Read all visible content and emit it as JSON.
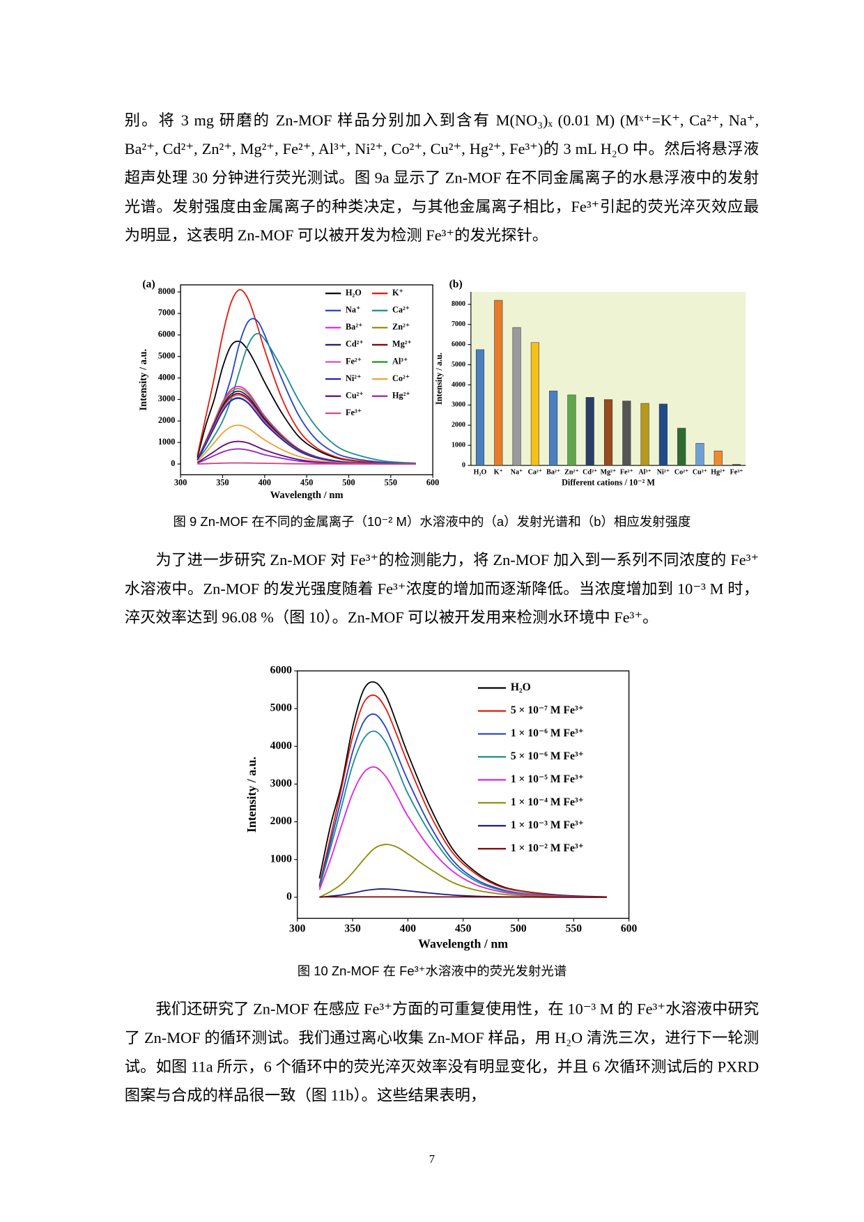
{
  "text": {
    "p1": "别。将 3 mg 研磨的 Zn-MOF 样品分别加入到含有 M(NO₃)ₓ (0.01 M) (Mˣ⁺=K⁺, Ca²⁺, Na⁺, Ba²⁺, Cd²⁺, Zn²⁺, Mg²⁺, Fe²⁺, Al³⁺, Ni²⁺, Co²⁺, Cu²⁺, Hg²⁺, Fe³⁺)的 3 mL H₂O 中。然后将悬浮液超声处理 30 分钟进行荧光测试。图 9a 显示了 Zn-MOF 在不同金属离子的水悬浮液中的发射光谱。发射强度由金属离子的种类决定，与其他金属离子相比，Fe³⁺引起的荧光淬灭效应最为明显，这表明 Zn-MOF 可以被开发为检测 Fe³⁺的发光探针。",
    "fig9_caption": "图 9 Zn-MOF 在不同的金属离子（10⁻² M）水溶液中的（a）发射光谱和（b）相应发射强度",
    "p2": "为了进一步研究 Zn-MOF 对 Fe³⁺的检测能力，将 Zn-MOF 加入到一系列不同浓度的 Fe³⁺水溶液中。Zn-MOF 的发光强度随着 Fe³⁺浓度的增加而逐渐降低。当浓度增加到 10⁻³ M 时，淬灭效率达到 96.08 %（图 10）。Zn-MOF 可以被开发用来检测水环境中 Fe³⁺。",
    "fig10_caption": "图 10 Zn-MOF 在 Fe³⁺水溶液中的荧光发射光谱",
    "p3": "我们还研究了 Zn-MOF 在感应 Fe³⁺方面的可重复使用性，在 10⁻³ M 的 Fe³⁺水溶液中研究了 Zn-MOF 的循环测试。我们通过离心收集 Zn-MOF 样品，用 H₂O 清洗三次，进行下一轮测试。如图 11a 所示，6 个循环中的荧光淬灭效率没有明显变化，并且 6 次循环测试后的 PXRD 图案与合成的样品很一致（图 11b）。这些结果表明，",
    "page_number": "7"
  },
  "chart_data": [
    {
      "type": "line",
      "panel_label": "(a)",
      "x_label": "Wavelength / nm",
      "y_label": "Intensity / a.u.",
      "xlim": [
        300,
        600
      ],
      "xticks": [
        300,
        350,
        400,
        450,
        500,
        550,
        600
      ],
      "ylim": [
        -500,
        8330
      ],
      "yticks": [
        0,
        1000,
        2000,
        3000,
        4000,
        5000,
        6000,
        7000,
        8000
      ],
      "legend": "upper right",
      "x": [
        320,
        330,
        340,
        350,
        360,
        370,
        380,
        390,
        400,
        420,
        440,
        460,
        480,
        500,
        540,
        580
      ],
      "series": [
        {
          "name": "H₂O",
          "color": "#000000",
          "values": [
            300,
            1800,
            3000,
            4500,
            5500,
            5700,
            5300,
            4600,
            3800,
            2400,
            1300,
            700,
            350,
            180,
            50,
            10
          ]
        },
        {
          "name": "K⁺",
          "color": "#e3170a",
          "values": [
            400,
            2200,
            4000,
            6000,
            7500,
            8100,
            7700,
            6600,
            5300,
            3100,
            1600,
            800,
            400,
            200,
            50,
            10
          ]
        },
        {
          "name": "Na⁺",
          "color": "#1f3fd0",
          "values": [
            200,
            1000,
            1800,
            2800,
            4000,
            5600,
            6600,
            6700,
            6000,
            4000,
            2300,
            1200,
            600,
            300,
            80,
            20
          ]
        },
        {
          "name": "Ca²⁺",
          "color": "#1a8a8a",
          "values": [
            200,
            700,
            1300,
            2000,
            3000,
            4300,
            5500,
            6050,
            5800,
            4500,
            3000,
            1800,
            1000,
            550,
            150,
            40
          ]
        },
        {
          "name": "Ba²⁺",
          "color": "#e020e0",
          "values": [
            220,
            1080,
            1980,
            2880,
            3460,
            3600,
            3350,
            2810,
            2230,
            1370,
            720,
            360,
            180,
            90,
            20,
            5
          ]
        },
        {
          "name": "Zn²⁺",
          "color": "#8a8a00",
          "values": [
            210,
            1050,
            1930,
            2800,
            3360,
            3500,
            3260,
            2730,
            2170,
            1330,
            700,
            350,
            175,
            90,
            20,
            5
          ]
        },
        {
          "name": "Cd²⁺",
          "color": "#1a1a80",
          "values": [
            200,
            1010,
            1860,
            2700,
            3240,
            3380,
            3140,
            2640,
            2100,
            1280,
            680,
            340,
            170,
            85,
            20,
            5
          ]
        },
        {
          "name": "Mg²⁺",
          "color": "#800000",
          "values": [
            200,
            980,
            1800,
            2620,
            3140,
            3270,
            3040,
            2550,
            2030,
            1240,
            650,
            330,
            160,
            80,
            20,
            5
          ]
        },
        {
          "name": "Fe²⁺",
          "color": "#e050a0",
          "values": [
            190,
            960,
            1760,
            2560,
            3070,
            3200,
            2980,
            2500,
            1980,
            1220,
            640,
            320,
            160,
            80,
            20,
            5
          ]
        },
        {
          "name": "Al³⁺",
          "color": "#209020",
          "values": [
            180,
            920,
            1690,
            2460,
            2960,
            3080,
            2860,
            2400,
            1910,
            1170,
            620,
            310,
            150,
            80,
            20,
            5
          ]
        },
        {
          "name": "Ni²⁺",
          "color": "#2020c0",
          "values": [
            180,
            920,
            1680,
            2440,
            2930,
            3050,
            2840,
            2380,
            1890,
            1160,
            610,
            300,
            150,
            75,
            20,
            5
          ]
        },
        {
          "name": "Co²⁺",
          "color": "#f0a030",
          "values": [
            110,
            540,
            990,
            1440,
            1730,
            1800,
            1670,
            1400,
            1120,
            680,
            360,
            180,
            90,
            45,
            10,
            2
          ]
        },
        {
          "name": "Cu²⁺",
          "color": "#600080",
          "values": [
            60,
            320,
            580,
            840,
            1010,
            1050,
            980,
            820,
            650,
            400,
            210,
            100,
            50,
            25,
            6,
            1
          ]
        },
        {
          "name": "Hg²⁺",
          "color": "#9020c0",
          "values": [
            40,
            210,
            390,
            560,
            670,
            700,
            650,
            550,
            430,
            270,
            140,
            70,
            35,
            20,
            4,
            1
          ]
        },
        {
          "name": "Fe³⁺",
          "color": "#d04080",
          "values": [
            5,
            15,
            30,
            40,
            48,
            50,
            47,
            40,
            32,
            20,
            10,
            5,
            3,
            1,
            0,
            0
          ]
        }
      ]
    },
    {
      "type": "bar",
      "panel_label": "(b)",
      "x_label": "Different cations / 10⁻² M",
      "y_label": "Intensity / a.u.",
      "background_color": "#eef3d4",
      "ylim": [
        0,
        8620
      ],
      "yticks": [
        0,
        1000,
        2000,
        3000,
        4000,
        5000,
        6000,
        7000,
        8000
      ],
      "categories": [
        "H₂O",
        "K⁺",
        "Na⁺",
        "Ca²⁺",
        "Ba²⁺",
        "Zn²⁺",
        "Cd²⁺",
        "Mg²⁺",
        "Fe²⁺",
        "Al³⁺",
        "Ni²⁺",
        "Co²⁺",
        "Cu²⁺",
        "Hg²⁺",
        "Fe³⁺"
      ],
      "values": [
        5750,
        8200,
        6850,
        6100,
        3700,
        3500,
        3380,
        3270,
        3200,
        3080,
        3050,
        1850,
        1100,
        720,
        50
      ],
      "colors": [
        "#4a7fc1",
        "#e87a2b",
        "#9a9a9a",
        "#f5c018",
        "#4a7fc1",
        "#5fa84a",
        "#2a3f66",
        "#9a4a1f",
        "#555555",
        "#b79a1a",
        "#1f4b8c",
        "#2e6b2e",
        "#6ea0d8",
        "#f08a30",
        "#333333"
      ]
    },
    {
      "type": "line",
      "x_label": "Wavelength / nm",
      "y_label": "Intensity / a.u.",
      "xlim": [
        300,
        600
      ],
      "xticks": [
        300,
        350,
        400,
        450,
        500,
        550,
        600
      ],
      "ylim": [
        -560,
        6000
      ],
      "yticks": [
        0,
        1000,
        2000,
        3000,
        4000,
        5000,
        6000
      ],
      "legend": "upper right",
      "x": [
        320,
        330,
        340,
        350,
        360,
        370,
        380,
        390,
        400,
        420,
        440,
        460,
        480,
        500,
        540,
        580
      ],
      "series": [
        {
          "name": "H₂O",
          "color": "#000000",
          "values": [
            500,
            1900,
            3000,
            4500,
            5500,
            5700,
            5350,
            4600,
            3800,
            2400,
            1300,
            700,
            350,
            180,
            50,
            10
          ]
        },
        {
          "name": "5 × 10⁻⁷ M Fe³⁺",
          "color": "#e3170a",
          "values": [
            320,
            1600,
            2900,
            4250,
            5150,
            5350,
            5000,
            4300,
            3550,
            2200,
            1200,
            650,
            320,
            170,
            40,
            10
          ]
        },
        {
          "name": "1 × 10⁻⁶ M Fe³⁺",
          "color": "#1f3fd0",
          "values": [
            290,
            1450,
            2650,
            3850,
            4650,
            4850,
            4500,
            3800,
            3100,
            1900,
            1000,
            500,
            250,
            120,
            30,
            5
          ]
        },
        {
          "name": "5 × 10⁻⁶ M Fe³⁺",
          "color": "#1a8a8a",
          "values": [
            260,
            1300,
            2400,
            3500,
            4200,
            4400,
            4100,
            3450,
            2750,
            1700,
            900,
            450,
            220,
            110,
            25,
            5
          ]
        },
        {
          "name": "1 × 10⁻⁵ M Fe³⁺",
          "color": "#e020e0",
          "values": [
            200,
            1000,
            1900,
            2750,
            3300,
            3450,
            3200,
            2700,
            2150,
            1300,
            700,
            350,
            170,
            85,
            20,
            5
          ]
        },
        {
          "name": "1 × 10⁻⁴ M Fe³⁺",
          "color": "#8a8a00",
          "values": [
            0,
            150,
            350,
            650,
            1000,
            1300,
            1400,
            1330,
            1150,
            750,
            400,
            200,
            100,
            50,
            10,
            2
          ]
        },
        {
          "name": "1 × 10⁻³ M Fe³⁺",
          "color": "#1a1a80",
          "values": [
            0,
            30,
            60,
            110,
            170,
            210,
            220,
            200,
            170,
            110,
            60,
            30,
            15,
            8,
            2,
            0
          ]
        },
        {
          "name": "1 × 10⁻² M Fe³⁺",
          "color": "#800000",
          "values": [
            10,
            10,
            10,
            10,
            10,
            10,
            10,
            10,
            10,
            10,
            10,
            8,
            6,
            5,
            3,
            2
          ]
        }
      ]
    }
  ]
}
